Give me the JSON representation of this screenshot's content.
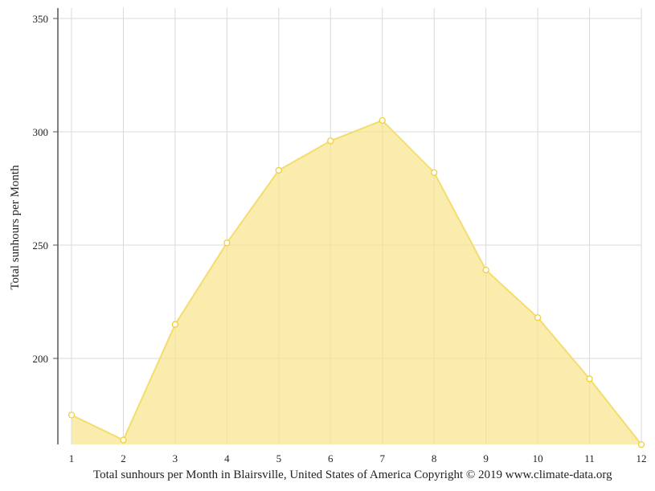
{
  "chart_data": {
    "type": "area",
    "x": [
      "1",
      "2",
      "3",
      "4",
      "5",
      "6",
      "7",
      "8",
      "9",
      "10",
      "11",
      "12"
    ],
    "values": [
      175,
      164,
      215,
      251,
      283,
      296,
      305,
      282,
      239,
      218,
      191,
      162
    ],
    "ylabel": "Total sunhours per Month",
    "xlabel": "",
    "yticks": [
      200,
      250,
      300,
      350
    ],
    "ylim": [
      162,
      354
    ],
    "grid": true,
    "legend": "none",
    "colors": {
      "fill": "#f7e48a",
      "line": "#f5dc6e",
      "marker": "#f0cf3c",
      "grid": "#d9d9d9",
      "axis": "#555555"
    }
  },
  "caption": "Total sunhours per Month in Blairsville, United States of America Copyright © 2019 www.climate-data.org"
}
